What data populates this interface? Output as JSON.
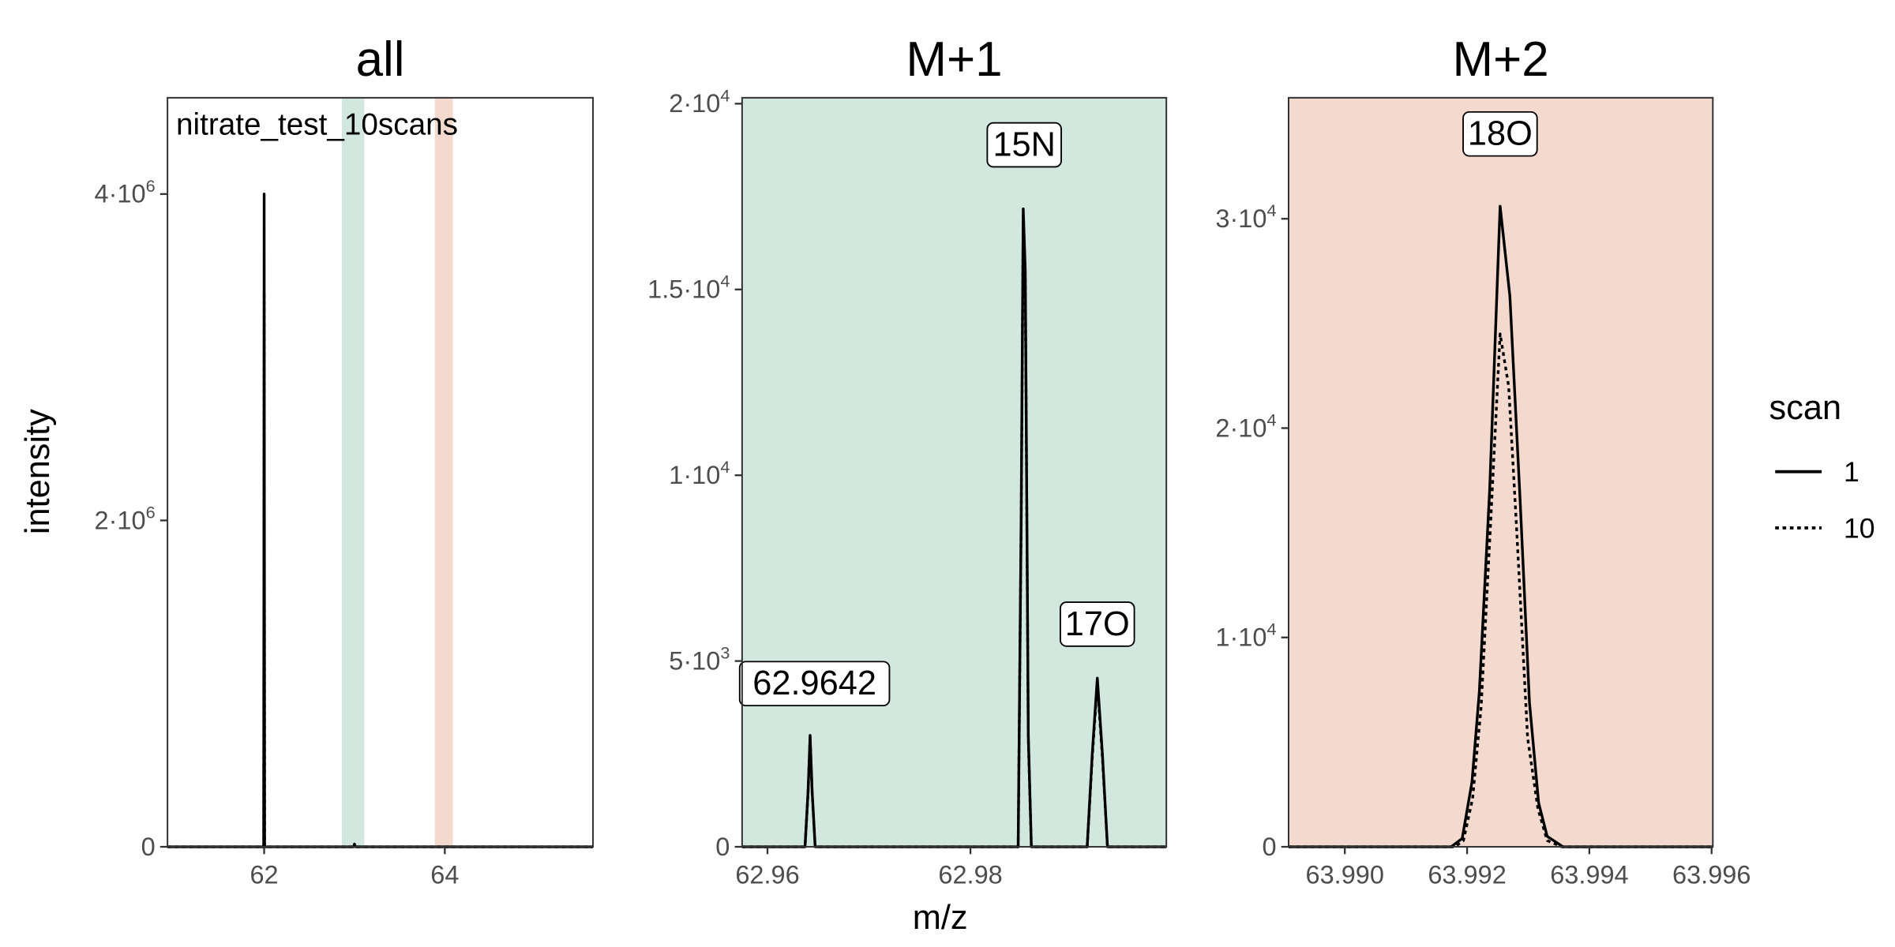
{
  "chart_data": {
    "type": "line",
    "ylabel": "intensity",
    "xlabel": "m/z",
    "grid": false,
    "legend": {
      "title": "scan",
      "placement": "right",
      "entries": [
        {
          "label": "1",
          "linetype": "solid"
        },
        {
          "label": "10",
          "linetype": "dotted"
        }
      ]
    },
    "colors": {
      "line": "#000000",
      "m1_band": "#d2e8df",
      "m2_band": "#f4dace",
      "axis": "#333333"
    },
    "panels": [
      {
        "title": "all",
        "annotation": "nitrate_test_10scans",
        "xlim": [
          60.93,
          65.64
        ],
        "ylim": [
          0,
          4590000
        ],
        "xticks": [
          {
            "value": 62,
            "label": "62"
          },
          {
            "value": 64,
            "label": "64"
          }
        ],
        "yticks": [
          {
            "value": 0,
            "mantissa": "0",
            "exp": ""
          },
          {
            "value": 2000000,
            "mantissa": "2",
            "exp": "6"
          },
          {
            "value": 4000000,
            "mantissa": "4",
            "exp": "6"
          }
        ],
        "bands": [
          {
            "from": 62.86,
            "to": 63.11,
            "color": "#d2e8df"
          },
          {
            "from": 63.89,
            "to": 64.09,
            "color": "#f4dace"
          }
        ],
        "background": "#ffffff",
        "series": [
          {
            "name": "1",
            "x": [
              60.93,
              61.995,
              62.0,
              62.005,
              62.99,
              63.0,
              63.01,
              65.64
            ],
            "y": [
              0,
              0,
              4000000,
              0,
              0,
              17000,
              0,
              0
            ]
          },
          {
            "name": "10",
            "x": [
              60.93,
              61.995,
              62.0,
              62.005,
              65.64
            ],
            "y": [
              0,
              0,
              3400000,
              0,
              0
            ]
          }
        ],
        "labels": []
      },
      {
        "title": "M+1",
        "xlim": [
          62.9575,
          62.9993
        ],
        "ylim": [
          0,
          20160
        ],
        "xticks": [
          {
            "value": 62.96,
            "label": "62.96"
          },
          {
            "value": 62.98,
            "label": "62.98"
          }
        ],
        "yticks": [
          {
            "value": 0,
            "mantissa": "0",
            "exp": ""
          },
          {
            "value": 5000,
            "mantissa": "5",
            "exp": "3"
          },
          {
            "value": 10000,
            "mantissa": "1",
            "exp": "4"
          },
          {
            "value": 15000,
            "mantissa": "1.5",
            "exp": "4"
          },
          {
            "value": 20000,
            "mantissa": "2",
            "exp": "4"
          }
        ],
        "bands": [],
        "background": "#d2e8df",
        "series": [
          {
            "name": "1",
            "x": [
              62.9575,
              62.9637,
              62.964,
              62.9642,
              62.9644,
              62.9647,
              62.9847,
              62.985,
              62.9852,
              62.9854,
              62.9857,
              62.986,
              62.9915,
              62.992,
              62.9925,
              62.993,
              62.9935,
              62.9993
            ],
            "y": [
              0,
              0,
              1500,
              3000,
              1500,
              0,
              0,
              9000,
              17170,
              15500,
              3000,
              0,
              0,
              2500,
              4540,
              2500,
              0,
              0
            ]
          },
          {
            "name": "10",
            "x": [
              62.9575,
              62.9637,
              62.964,
              62.9642,
              62.9644,
              62.9647,
              62.9847,
              62.985,
              62.9852,
              62.9854,
              62.9857,
              62.986,
              62.9915,
              62.992,
              62.9925,
              62.993,
              62.9935,
              62.9993
            ],
            "y": [
              0,
              0,
              1450,
              2950,
              1450,
              0,
              0,
              8800,
              17000,
              15300,
              2900,
              0,
              0,
              2400,
              4400,
              2400,
              0,
              0
            ]
          }
        ],
        "labels": [
          {
            "text": "62.9642",
            "x": 62.9642,
            "y": 3800
          },
          {
            "text": "15N",
            "x": 62.9853,
            "y": 18300
          },
          {
            "text": "17O",
            "x": 62.9925,
            "y": 5400
          }
        ]
      },
      {
        "title": "M+2",
        "xlim": [
          63.98908,
          63.99602
        ],
        "ylim": [
          0,
          35780
        ],
        "xticks": [
          {
            "value": 63.99,
            "label": "63.990"
          },
          {
            "value": 63.992,
            "label": "63.992"
          },
          {
            "value": 63.994,
            "label": "63.994"
          },
          {
            "value": 63.996,
            "label": "63.996"
          }
        ],
        "yticks": [
          {
            "value": 0,
            "mantissa": "0",
            "exp": ""
          },
          {
            "value": 10000,
            "mantissa": "1",
            "exp": "4"
          },
          {
            "value": 20000,
            "mantissa": "2",
            "exp": "4"
          },
          {
            "value": 30000,
            "mantissa": "3",
            "exp": "4"
          }
        ],
        "bands": [],
        "background": "#f4dace",
        "series": [
          {
            "name": "1",
            "x": [
              63.98908,
              63.99174,
              63.99192,
              63.99208,
              63.9922,
              63.99237,
              63.99254,
              63.9927,
              63.99287,
              63.99302,
              63.99317,
              63.99331,
              63.99357,
              63.99602
            ],
            "y": [
              0,
              0,
              400,
              3100,
              7400,
              17100,
              30600,
              26300,
              16400,
              6900,
              2100,
              500,
              0,
              0
            ]
          },
          {
            "name": "10",
            "x": [
              63.98908,
              63.9918,
              63.99194,
              63.99209,
              63.99223,
              63.99238,
              63.99254,
              63.99268,
              63.99281,
              63.99299,
              63.99316,
              63.99331,
              63.99355,
              63.99602
            ],
            "y": [
              0,
              0,
              300,
              2300,
              6700,
              15200,
              24500,
              22000,
              15200,
              5200,
              1800,
              300,
              0,
              0
            ]
          }
        ],
        "labels": [
          {
            "text": "18O",
            "x": 63.99254,
            "y": 33000
          }
        ]
      }
    ]
  }
}
